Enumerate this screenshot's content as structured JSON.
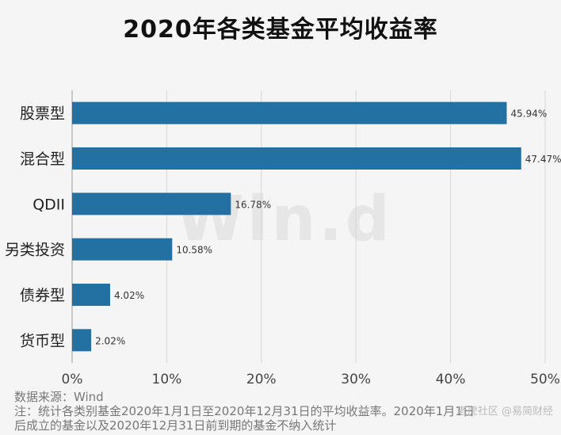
{
  "chart_data": {
    "type": "bar",
    "orientation": "horizontal",
    "title": "2020年各类基金平均收益率",
    "categories": [
      "股票型",
      "混合型",
      "QDII",
      "另类投资",
      "债券型",
      "货币型"
    ],
    "values": [
      45.94,
      47.47,
      16.78,
      10.58,
      4.02,
      2.02
    ],
    "value_labels": [
      "45.94%",
      "47.47%",
      "16.78%",
      "10.58%",
      "4.02%",
      "2.02%"
    ],
    "x_ticks": [
      "0%",
      "10%",
      "20%",
      "30%",
      "40%",
      "50%"
    ],
    "xlim": [
      0,
      50
    ],
    "grid": true,
    "bar_color": "#2271a2"
  },
  "footer": {
    "source": "数据来源：Wind",
    "note_line1": "注：统计各类别基金2020年1月1日至2020年12月31日的平均收益率。2020年1月1日",
    "note_line2": "后成立的基金以及2020年12月31日前到期的基金不纳入统计"
  },
  "watermark": {
    "text": "Win.d",
    "corner_text": "老虎社区 @易简财经"
  }
}
